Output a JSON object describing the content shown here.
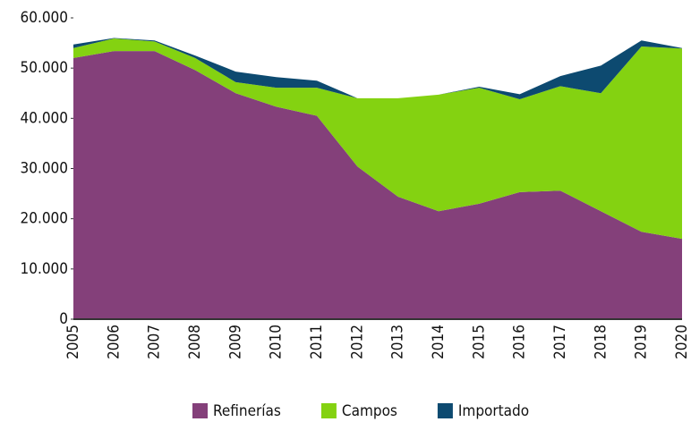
{
  "chart_data": {
    "type": "stacked_area",
    "x": [
      "2005",
      "2006",
      "2007",
      "2008",
      "2009",
      "2010",
      "2011",
      "2012",
      "2013",
      "2014",
      "2015",
      "2016",
      "2017",
      "2018",
      "2019",
      "2020"
    ],
    "series": [
      {
        "name": "Refinerías",
        "color": "#84407a",
        "values": [
          52000,
          53400,
          53400,
          49600,
          45000,
          42300,
          40500,
          30400,
          24400,
          21500,
          23000,
          25300,
          25600,
          21500,
          17400,
          16000
        ]
      },
      {
        "name": "Campos",
        "color": "#84d211",
        "values": [
          2000,
          2500,
          1900,
          2400,
          2200,
          3800,
          5600,
          13600,
          19600,
          23200,
          23100,
          18500,
          20800,
          23500,
          36900,
          37900
        ]
      },
      {
        "name": "Importado",
        "color": "#0d4a70",
        "values": [
          700,
          100,
          200,
          500,
          2100,
          2100,
          1400,
          0,
          0,
          0,
          200,
          1000,
          2000,
          5500,
          1200,
          100
        ]
      }
    ],
    "ylim": [
      0,
      60000
    ],
    "yticks": [
      0,
      {
        "value": 10000,
        "label": "10.000"
      },
      {
        "value": 20000,
        "label": "20.000"
      },
      {
        "value": 30000,
        "label": "30.000"
      },
      {
        "value": 40000,
        "label": "40.000"
      },
      {
        "value": 50000,
        "label": "50.000"
      },
      {
        "value": 60000,
        "label": "60.000"
      }
    ],
    "legend": "bottom"
  }
}
